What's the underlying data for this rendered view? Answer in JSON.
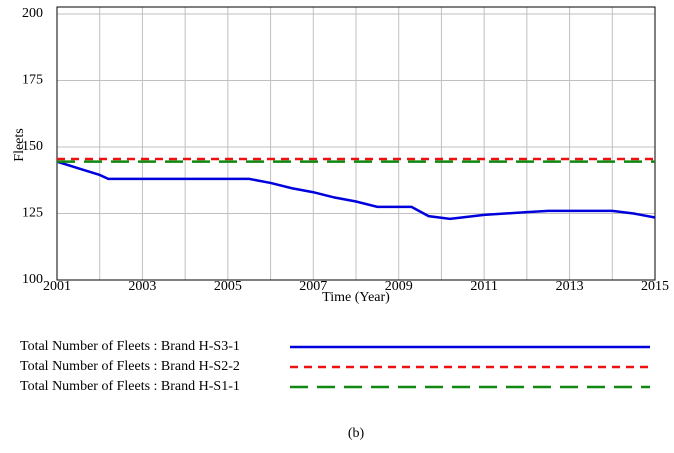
{
  "chart_data": {
    "type": "line",
    "caption": "(b)",
    "x_label": "Time (Year)",
    "y_label": "Fleets",
    "x": [
      2001,
      2001.5,
      2002,
      2002.2,
      2003,
      2004,
      2005,
      2005.5,
      2006,
      2006.5,
      2007,
      2007.5,
      2008,
      2008.5,
      2009,
      2009.3,
      2009.7,
      2010.2,
      2011,
      2012,
      2012.5,
      2013,
      2014,
      2014.5,
      2015
    ],
    "series": [
      {
        "name": "Total Number of Fleets : Brand H-S3-1",
        "color": "#0000dd",
        "dash": "none",
        "values": [
          144.5,
          142,
          139.5,
          138,
          138,
          138,
          138,
          138,
          136.5,
          134.5,
          133,
          131,
          129.5,
          127.5,
          127.5,
          127.5,
          124,
          123,
          124.5,
          125.5,
          126,
          126,
          126,
          125,
          123.5
        ]
      },
      {
        "name": "Total Number of Fleets : Brand H-S2-2",
        "color": "#ee1111",
        "dash": "8 6",
        "values": [
          145.5,
          145.5,
          145.5,
          145.5,
          145.5,
          145.5,
          145.5,
          145.5,
          145.5,
          145.5,
          145.5,
          145.5,
          145.5,
          145.5,
          145.5,
          145.5,
          145.5,
          145.5,
          145.5,
          145.5,
          145.5,
          145.5,
          145.5,
          145.5,
          145.5
        ]
      },
      {
        "name": "Total Number of Fleets : Brand H-S1-1",
        "color": "#118811",
        "dash": "18 9",
        "values": [
          144.5,
          144.5,
          144.5,
          144.5,
          144.5,
          144.5,
          144.5,
          144.5,
          144.5,
          144.5,
          144.5,
          144.5,
          144.5,
          144.5,
          144.5,
          144.5,
          144.5,
          144.5,
          144.5,
          144.5,
          144.5,
          144.5,
          144.5,
          144.5,
          144.5
        ]
      }
    ],
    "xlim": [
      2001,
      2015
    ],
    "xticks": [
      2001,
      2003,
      2005,
      2007,
      2009,
      2011,
      2013,
      2015
    ],
    "xgrid": [
      2001,
      2002,
      2003,
      2004,
      2005,
      2006,
      2007,
      2008,
      2009,
      2010,
      2011,
      2012,
      2013,
      2014,
      2015
    ],
    "ylim": [
      100,
      200
    ],
    "yticks": [
      100,
      125,
      150,
      175,
      200
    ],
    "grid": true
  }
}
